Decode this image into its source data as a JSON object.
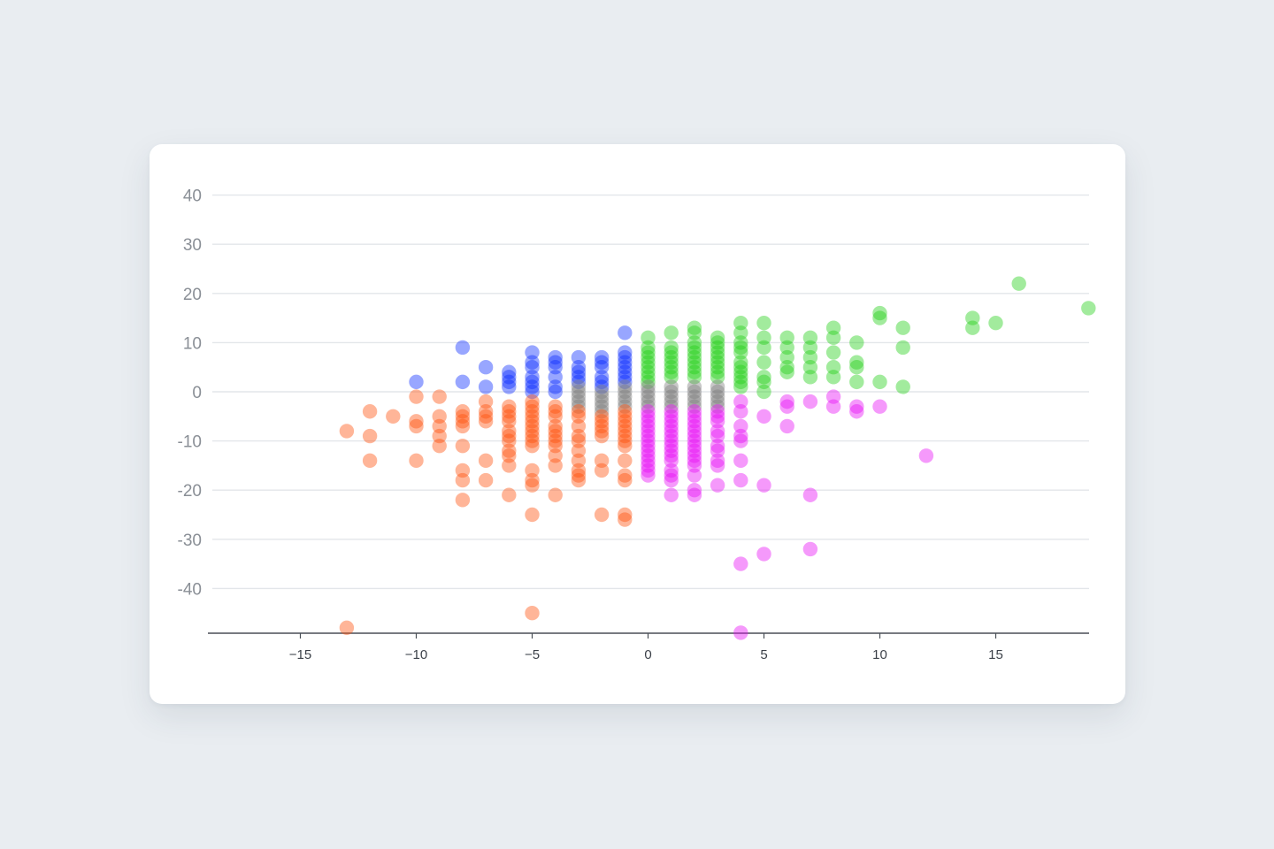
{
  "chart_data": {
    "type": "scatter",
    "title": "",
    "xlabel": "",
    "ylabel": "",
    "xlim": [
      -19,
      19
    ],
    "ylim": [
      -49,
      45
    ],
    "x_ticks": [
      -15,
      -10,
      -5,
      0,
      5,
      10,
      15
    ],
    "x_tick_labels": [
      "−15",
      "−10",
      "−5",
      "0",
      "5",
      "10",
      "15"
    ],
    "y_ticks": [
      40,
      30,
      20,
      10,
      0,
      -10,
      -20,
      -30,
      -40
    ],
    "y_tick_labels": [
      "40",
      "30",
      "20",
      "10",
      "0",
      "-10",
      "-20",
      "-30",
      "-40"
    ],
    "grid": "horizontal",
    "legend": "none",
    "series": [
      {
        "color": "#0a2bff",
        "points": [
          [
            -10,
            2
          ],
          [
            -8,
            9
          ],
          [
            -8,
            2
          ],
          [
            -7,
            5
          ],
          [
            -7,
            1
          ],
          [
            -6,
            4
          ],
          [
            -6,
            3
          ],
          [
            -6,
            2
          ],
          [
            -6,
            1
          ],
          [
            -5,
            8
          ],
          [
            -5,
            6
          ],
          [
            -5,
            5
          ],
          [
            -5,
            3
          ],
          [
            -5,
            2
          ],
          [
            -5,
            1
          ],
          [
            -5,
            0
          ],
          [
            -4,
            7
          ],
          [
            -4,
            6
          ],
          [
            -4,
            5
          ],
          [
            -4,
            3
          ],
          [
            -4,
            1
          ],
          [
            -4,
            0
          ],
          [
            -3,
            7
          ],
          [
            -3,
            5
          ],
          [
            -3,
            4
          ],
          [
            -3,
            3
          ],
          [
            -3,
            2
          ],
          [
            -2,
            7
          ],
          [
            -2,
            6
          ],
          [
            -2,
            5
          ],
          [
            -2,
            3
          ],
          [
            -2,
            2
          ],
          [
            -2,
            1
          ],
          [
            -1,
            12
          ],
          [
            -1,
            8
          ],
          [
            -1,
            7
          ],
          [
            -1,
            6
          ],
          [
            -1,
            5
          ],
          [
            -1,
            4
          ],
          [
            -1,
            3
          ],
          [
            -1,
            2
          ]
        ]
      },
      {
        "color": "#22d016",
        "points": [
          [
            0,
            11
          ],
          [
            0,
            9
          ],
          [
            0,
            8
          ],
          [
            0,
            7
          ],
          [
            0,
            6
          ],
          [
            0,
            5
          ],
          [
            0,
            4
          ],
          [
            0,
            3
          ],
          [
            0,
            2
          ],
          [
            1,
            12
          ],
          [
            1,
            9
          ],
          [
            1,
            8
          ],
          [
            1,
            7
          ],
          [
            1,
            6
          ],
          [
            1,
            5
          ],
          [
            1,
            4
          ],
          [
            1,
            3
          ],
          [
            2,
            13
          ],
          [
            2,
            12
          ],
          [
            2,
            10
          ],
          [
            2,
            9
          ],
          [
            2,
            8
          ],
          [
            2,
            7
          ],
          [
            2,
            6
          ],
          [
            2,
            5
          ],
          [
            2,
            4
          ],
          [
            2,
            3
          ],
          [
            3,
            11
          ],
          [
            3,
            10
          ],
          [
            3,
            9
          ],
          [
            3,
            8
          ],
          [
            3,
            7
          ],
          [
            3,
            6
          ],
          [
            3,
            5
          ],
          [
            3,
            4
          ],
          [
            3,
            3
          ],
          [
            4,
            14
          ],
          [
            4,
            12
          ],
          [
            4,
            10
          ],
          [
            4,
            9
          ],
          [
            4,
            8
          ],
          [
            4,
            6
          ],
          [
            4,
            5
          ],
          [
            4,
            4
          ],
          [
            4,
            3
          ],
          [
            4,
            2
          ],
          [
            4,
            1
          ],
          [
            5,
            14
          ],
          [
            5,
            11
          ],
          [
            5,
            9
          ],
          [
            5,
            6
          ],
          [
            5,
            3
          ],
          [
            5,
            2
          ],
          [
            5,
            0
          ],
          [
            6,
            11
          ],
          [
            6,
            9
          ],
          [
            6,
            7
          ],
          [
            6,
            5
          ],
          [
            6,
            4
          ],
          [
            7,
            11
          ],
          [
            7,
            9
          ],
          [
            7,
            7
          ],
          [
            7,
            5
          ],
          [
            7,
            3
          ],
          [
            8,
            13
          ],
          [
            8,
            11
          ],
          [
            8,
            8
          ],
          [
            8,
            5
          ],
          [
            8,
            3
          ],
          [
            9,
            10
          ],
          [
            9,
            6
          ],
          [
            9,
            5
          ],
          [
            9,
            2
          ],
          [
            10,
            16
          ],
          [
            10,
            15
          ],
          [
            10,
            2
          ],
          [
            11,
            13
          ],
          [
            11,
            9
          ],
          [
            11,
            1
          ],
          [
            14,
            15
          ],
          [
            14,
            13
          ],
          [
            15,
            14
          ],
          [
            16,
            22
          ],
          [
            19,
            17
          ]
        ]
      },
      {
        "color": "#7d7d7d",
        "points": [
          [
            -3,
            1
          ],
          [
            -3,
            0
          ],
          [
            -3,
            -1
          ],
          [
            -3,
            -2
          ],
          [
            -3,
            -3
          ],
          [
            -2,
            0
          ],
          [
            -2,
            -1
          ],
          [
            -2,
            -2
          ],
          [
            -2,
            -3
          ],
          [
            -2,
            -4
          ],
          [
            -1,
            1
          ],
          [
            -1,
            0
          ],
          [
            -1,
            -1
          ],
          [
            -1,
            -2
          ],
          [
            -1,
            -3
          ],
          [
            0,
            1
          ],
          [
            0,
            0
          ],
          [
            0,
            -1
          ],
          [
            0,
            -2
          ],
          [
            0,
            -3
          ],
          [
            1,
            1
          ],
          [
            1,
            0
          ],
          [
            1,
            -1
          ],
          [
            1,
            -2
          ],
          [
            1,
            -3
          ],
          [
            2,
            1
          ],
          [
            2,
            0
          ],
          [
            2,
            -1
          ],
          [
            2,
            -2
          ],
          [
            2,
            -3
          ],
          [
            3,
            1
          ],
          [
            3,
            0
          ],
          [
            3,
            -1
          ],
          [
            3,
            -2
          ],
          [
            3,
            -3
          ]
        ]
      },
      {
        "color": "#ff4f0a",
        "points": [
          [
            -13,
            -8
          ],
          [
            -13,
            -48
          ],
          [
            -12,
            -4
          ],
          [
            -12,
            -9
          ],
          [
            -12,
            -14
          ],
          [
            -11,
            -5
          ],
          [
            -10,
            -1
          ],
          [
            -10,
            -6
          ],
          [
            -10,
            -7
          ],
          [
            -10,
            -14
          ],
          [
            -9,
            -1
          ],
          [
            -9,
            -5
          ],
          [
            -9,
            -7
          ],
          [
            -9,
            -9
          ],
          [
            -9,
            -11
          ],
          [
            -8,
            -4
          ],
          [
            -8,
            -5
          ],
          [
            -8,
            -6
          ],
          [
            -8,
            -7
          ],
          [
            -8,
            -11
          ],
          [
            -8,
            -16
          ],
          [
            -8,
            -18
          ],
          [
            -8,
            -22
          ],
          [
            -7,
            -2
          ],
          [
            -7,
            -4
          ],
          [
            -7,
            -5
          ],
          [
            -7,
            -6
          ],
          [
            -7,
            -14
          ],
          [
            -7,
            -18
          ],
          [
            -6,
            -3
          ],
          [
            -6,
            -4
          ],
          [
            -6,
            -5
          ],
          [
            -6,
            -6
          ],
          [
            -6,
            -8
          ],
          [
            -6,
            -9
          ],
          [
            -6,
            -10
          ],
          [
            -6,
            -12
          ],
          [
            -6,
            -13
          ],
          [
            -6,
            -15
          ],
          [
            -6,
            -21
          ],
          [
            -5,
            -2
          ],
          [
            -5,
            -3
          ],
          [
            -5,
            -4
          ],
          [
            -5,
            -5
          ],
          [
            -5,
            -6
          ],
          [
            -5,
            -7
          ],
          [
            -5,
            -8
          ],
          [
            -5,
            -9
          ],
          [
            -5,
            -10
          ],
          [
            -5,
            -11
          ],
          [
            -5,
            -16
          ],
          [
            -5,
            -18
          ],
          [
            -5,
            -19
          ],
          [
            -5,
            -25
          ],
          [
            -5,
            -45
          ],
          [
            -4,
            -3
          ],
          [
            -4,
            -4
          ],
          [
            -4,
            -5
          ],
          [
            -4,
            -7
          ],
          [
            -4,
            -8
          ],
          [
            -4,
            -9
          ],
          [
            -4,
            -10
          ],
          [
            -4,
            -11
          ],
          [
            -4,
            -13
          ],
          [
            -4,
            -15
          ],
          [
            -4,
            -21
          ],
          [
            -3,
            -4
          ],
          [
            -3,
            -5
          ],
          [
            -3,
            -7
          ],
          [
            -3,
            -9
          ],
          [
            -3,
            -10
          ],
          [
            -3,
            -12
          ],
          [
            -3,
            -14
          ],
          [
            -3,
            -16
          ],
          [
            -3,
            -17
          ],
          [
            -3,
            -18
          ],
          [
            -2,
            -5
          ],
          [
            -2,
            -6
          ],
          [
            -2,
            -7
          ],
          [
            -2,
            -8
          ],
          [
            -2,
            -9
          ],
          [
            -2,
            -14
          ],
          [
            -2,
            -16
          ],
          [
            -2,
            -25
          ],
          [
            -1,
            -4
          ],
          [
            -1,
            -5
          ],
          [
            -1,
            -6
          ],
          [
            -1,
            -7
          ],
          [
            -1,
            -8
          ],
          [
            -1,
            -9
          ],
          [
            -1,
            -10
          ],
          [
            -1,
            -11
          ],
          [
            -1,
            -14
          ],
          [
            -1,
            -17
          ],
          [
            -1,
            -18
          ],
          [
            -1,
            -25
          ],
          [
            -1,
            -26
          ]
        ]
      },
      {
        "color": "#e60df5",
        "points": [
          [
            0,
            -4
          ],
          [
            0,
            -5
          ],
          [
            0,
            -6
          ],
          [
            0,
            -7
          ],
          [
            0,
            -8
          ],
          [
            0,
            -9
          ],
          [
            0,
            -10
          ],
          [
            0,
            -11
          ],
          [
            0,
            -12
          ],
          [
            0,
            -13
          ],
          [
            0,
            -14
          ],
          [
            0,
            -15
          ],
          [
            0,
            -16
          ],
          [
            0,
            -17
          ],
          [
            1,
            -4
          ],
          [
            1,
            -5
          ],
          [
            1,
            -6
          ],
          [
            1,
            -7
          ],
          [
            1,
            -8
          ],
          [
            1,
            -9
          ],
          [
            1,
            -10
          ],
          [
            1,
            -11
          ],
          [
            1,
            -12
          ],
          [
            1,
            -13
          ],
          [
            1,
            -14
          ],
          [
            1,
            -16
          ],
          [
            1,
            -17
          ],
          [
            1,
            -18
          ],
          [
            1,
            -21
          ],
          [
            2,
            -4
          ],
          [
            2,
            -5
          ],
          [
            2,
            -6
          ],
          [
            2,
            -7
          ],
          [
            2,
            -8
          ],
          [
            2,
            -9
          ],
          [
            2,
            -10
          ],
          [
            2,
            -11
          ],
          [
            2,
            -12
          ],
          [
            2,
            -13
          ],
          [
            2,
            -14
          ],
          [
            2,
            -15
          ],
          [
            2,
            -17
          ],
          [
            2,
            -20
          ],
          [
            2,
            -21
          ],
          [
            3,
            -4
          ],
          [
            3,
            -5
          ],
          [
            3,
            -6
          ],
          [
            3,
            -8
          ],
          [
            3,
            -9
          ],
          [
            3,
            -11
          ],
          [
            3,
            -12
          ],
          [
            3,
            -14
          ],
          [
            3,
            -15
          ],
          [
            3,
            -19
          ],
          [
            4,
            -2
          ],
          [
            4,
            -4
          ],
          [
            4,
            -7
          ],
          [
            4,
            -9
          ],
          [
            4,
            -10
          ],
          [
            4,
            -14
          ],
          [
            4,
            -18
          ],
          [
            4,
            -35
          ],
          [
            4,
            -49
          ],
          [
            5,
            -5
          ],
          [
            5,
            -19
          ],
          [
            5,
            -33
          ],
          [
            6,
            -2
          ],
          [
            6,
            -3
          ],
          [
            6,
            -7
          ],
          [
            7,
            -2
          ],
          [
            7,
            -21
          ],
          [
            7,
            -32
          ],
          [
            8,
            -1
          ],
          [
            8,
            -3
          ],
          [
            9,
            -3
          ],
          [
            9,
            -4
          ],
          [
            10,
            -3
          ],
          [
            12,
            -13
          ]
        ]
      }
    ]
  }
}
